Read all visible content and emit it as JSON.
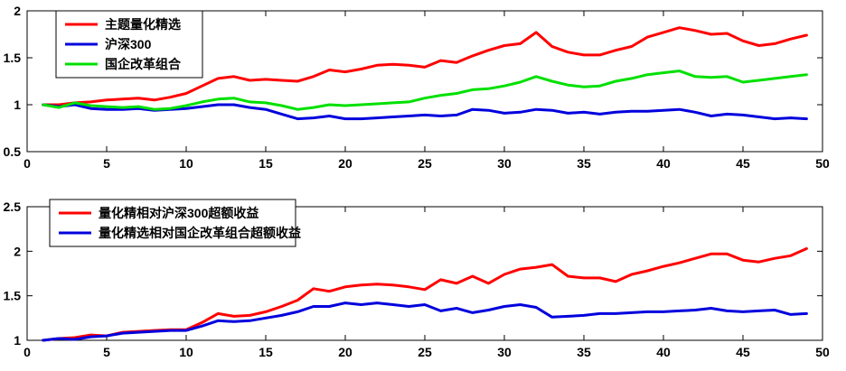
{
  "accent_colors": {
    "red": "#ff0000",
    "blue": "#0000dd",
    "green": "#00e000",
    "axis": "#000000",
    "background": "#ffffff"
  },
  "chart_data": [
    {
      "name": "cumulative-return-chart",
      "type": "line",
      "x": [
        1,
        2,
        3,
        4,
        5,
        6,
        7,
        8,
        9,
        10,
        11,
        12,
        13,
        14,
        15,
        16,
        17,
        18,
        19,
        20,
        21,
        22,
        23,
        24,
        25,
        26,
        27,
        28,
        29,
        30,
        31,
        32,
        33,
        34,
        35,
        36,
        37,
        38,
        39,
        40,
        41,
        42,
        43,
        44,
        45,
        46,
        47,
        48,
        49
      ],
      "xlim": [
        0,
        50
      ],
      "ylim": [
        0.5,
        2
      ],
      "xticks": [
        0,
        5,
        10,
        15,
        20,
        25,
        30,
        35,
        40,
        45,
        50
      ],
      "xtick_labels": [
        "0",
        "5",
        "10",
        "15",
        "20",
        "25",
        "30",
        "35",
        "40",
        "45",
        "50"
      ],
      "yticks": [
        0.5,
        1,
        1.5,
        2
      ],
      "ytick_labels": [
        "0.5",
        "1",
        "1.5",
        "2"
      ],
      "grid": false,
      "legend_position": "top-left",
      "series": [
        {
          "name": "主题量化精选",
          "color": "#ff0000",
          "values": [
            1.0,
            1.0,
            1.02,
            1.03,
            1.05,
            1.06,
            1.07,
            1.05,
            1.08,
            1.12,
            1.2,
            1.28,
            1.3,
            1.26,
            1.27,
            1.26,
            1.25,
            1.3,
            1.37,
            1.35,
            1.38,
            1.42,
            1.43,
            1.42,
            1.4,
            1.47,
            1.45,
            1.52,
            1.58,
            1.63,
            1.65,
            1.77,
            1.62,
            1.56,
            1.53,
            1.53,
            1.58,
            1.62,
            1.72,
            1.77,
            1.82,
            1.79,
            1.75,
            1.76,
            1.68,
            1.63,
            1.65,
            1.7,
            1.74
          ]
        },
        {
          "name": "沪深300",
          "color": "#0000dd",
          "values": [
            1.0,
            0.98,
            1.0,
            0.96,
            0.95,
            0.95,
            0.96,
            0.94,
            0.95,
            0.96,
            0.98,
            1.0,
            1.0,
            0.97,
            0.95,
            0.9,
            0.85,
            0.86,
            0.88,
            0.85,
            0.85,
            0.86,
            0.87,
            0.88,
            0.89,
            0.88,
            0.89,
            0.95,
            0.94,
            0.91,
            0.92,
            0.95,
            0.94,
            0.91,
            0.92,
            0.9,
            0.92,
            0.93,
            0.93,
            0.94,
            0.95,
            0.92,
            0.88,
            0.9,
            0.89,
            0.87,
            0.85,
            0.86,
            0.85
          ]
        },
        {
          "name": "国企改革组合",
          "color": "#00e000",
          "values": [
            1.0,
            0.97,
            1.02,
            0.99,
            0.98,
            0.97,
            0.98,
            0.95,
            0.96,
            0.99,
            1.03,
            1.06,
            1.07,
            1.03,
            1.02,
            0.99,
            0.95,
            0.97,
            1.0,
            0.99,
            1.0,
            1.01,
            1.02,
            1.03,
            1.07,
            1.1,
            1.12,
            1.16,
            1.17,
            1.2,
            1.24,
            1.3,
            1.25,
            1.21,
            1.19,
            1.2,
            1.25,
            1.28,
            1.32,
            1.34,
            1.36,
            1.3,
            1.29,
            1.3,
            1.24,
            1.26,
            1.28,
            1.3,
            1.32
          ]
        }
      ]
    },
    {
      "name": "excess-return-chart",
      "type": "line",
      "x": [
        1,
        2,
        3,
        4,
        5,
        6,
        7,
        8,
        9,
        10,
        11,
        12,
        13,
        14,
        15,
        16,
        17,
        18,
        19,
        20,
        21,
        22,
        23,
        24,
        25,
        26,
        27,
        28,
        29,
        30,
        31,
        32,
        33,
        34,
        35,
        36,
        37,
        38,
        39,
        40,
        41,
        42,
        43,
        44,
        45,
        46,
        47,
        48,
        49
      ],
      "xlim": [
        0,
        50
      ],
      "ylim": [
        1,
        2.5
      ],
      "xticks": [
        0,
        5,
        10,
        15,
        20,
        25,
        30,
        35,
        40,
        45,
        50
      ],
      "xtick_labels": [
        "0",
        "5",
        "10",
        "15",
        "20",
        "25",
        "30",
        "35",
        "40",
        "45",
        "50"
      ],
      "yticks": [
        1,
        1.5,
        2,
        2.5
      ],
      "ytick_labels": [
        "1",
        "1.5",
        "2",
        "2.5"
      ],
      "grid": false,
      "legend_position": "top-left",
      "series": [
        {
          "name": "量化精相对沪深300超额收益",
          "color": "#ff0000",
          "values": [
            1.0,
            1.02,
            1.03,
            1.06,
            1.05,
            1.09,
            1.1,
            1.11,
            1.12,
            1.12,
            1.2,
            1.3,
            1.27,
            1.28,
            1.32,
            1.38,
            1.45,
            1.58,
            1.55,
            1.6,
            1.62,
            1.63,
            1.62,
            1.6,
            1.57,
            1.68,
            1.64,
            1.72,
            1.64,
            1.74,
            1.8,
            1.82,
            1.85,
            1.72,
            1.7,
            1.7,
            1.66,
            1.74,
            1.78,
            1.83,
            1.87,
            1.92,
            1.97,
            1.97,
            1.9,
            1.88,
            1.92,
            1.95,
            2.03
          ]
        },
        {
          "name": "量化精选相对国企改革组合超额收益",
          "color": "#0000dd",
          "values": [
            1.0,
            1.02,
            1.01,
            1.04,
            1.05,
            1.08,
            1.09,
            1.1,
            1.11,
            1.11,
            1.16,
            1.22,
            1.21,
            1.22,
            1.25,
            1.28,
            1.32,
            1.38,
            1.38,
            1.42,
            1.4,
            1.42,
            1.4,
            1.38,
            1.4,
            1.33,
            1.36,
            1.31,
            1.34,
            1.38,
            1.4,
            1.37,
            1.26,
            1.27,
            1.28,
            1.3,
            1.3,
            1.31,
            1.32,
            1.32,
            1.33,
            1.34,
            1.36,
            1.33,
            1.32,
            1.33,
            1.34,
            1.29,
            1.3
          ]
        }
      ]
    }
  ]
}
